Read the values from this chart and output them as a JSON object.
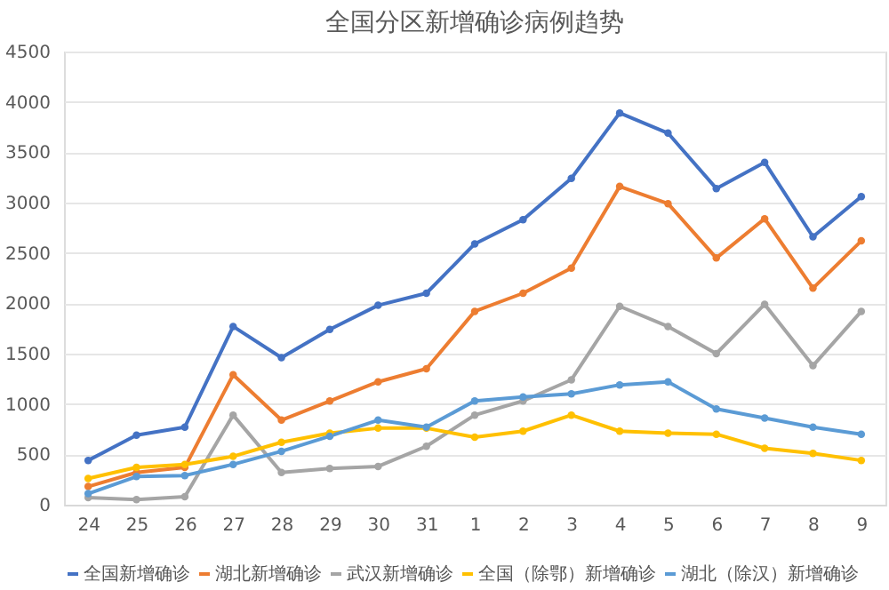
{
  "chart_data": {
    "type": "line",
    "title": "全国分区新增确诊病例趋势",
    "categories": [
      "24",
      "25",
      "26",
      "27",
      "28",
      "29",
      "30",
      "31",
      "1",
      "2",
      "3",
      "4",
      "5",
      "6",
      "7",
      "8",
      "9"
    ],
    "series": [
      {
        "name": "全国新增确诊",
        "color": "#4472c4",
        "values": [
          440,
          690,
          770,
          1770,
          1460,
          1740,
          1980,
          2100,
          2590,
          2830,
          3240,
          3890,
          3690,
          3140,
          3400,
          2660,
          3060
        ]
      },
      {
        "name": "湖北新增确诊",
        "color": "#ed7d31",
        "values": [
          180,
          320,
          370,
          1290,
          840,
          1030,
          1220,
          1350,
          1920,
          2100,
          2350,
          3160,
          2990,
          2450,
          2840,
          2150,
          2620
        ]
      },
      {
        "name": "武汉新增确诊",
        "color": "#a5a5a5",
        "values": [
          70,
          50,
          80,
          890,
          320,
          360,
          380,
          580,
          890,
          1030,
          1240,
          1970,
          1770,
          1500,
          1990,
          1380,
          1920
        ]
      },
      {
        "name": "全国（除鄂）新增确诊",
        "color": "#ffc000",
        "values": [
          260,
          370,
          400,
          480,
          620,
          710,
          760,
          760,
          670,
          730,
          890,
          730,
          710,
          700,
          560,
          510,
          440
        ]
      },
      {
        "name": "湖北（除汉）新增确诊",
        "color": "#5b9bd5",
        "values": [
          110,
          280,
          290,
          400,
          530,
          680,
          840,
          770,
          1030,
          1070,
          1100,
          1190,
          1220,
          950,
          860,
          770,
          700
        ]
      }
    ],
    "ylim": [
      0,
      4500
    ],
    "yticks": [
      0,
      500,
      1000,
      1500,
      2000,
      2500,
      3000,
      3500,
      4000,
      4500
    ],
    "grid": "y",
    "legend": "bottom",
    "marker": "circle",
    "line_style": "solid"
  }
}
